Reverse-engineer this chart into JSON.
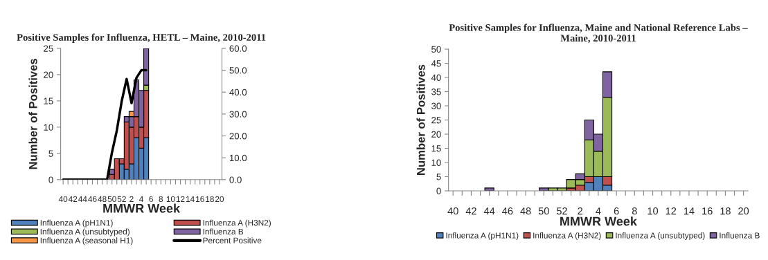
{
  "chart_data": [
    {
      "type": "bar",
      "stacked": true,
      "title": "Positive Samples for Influenza, HETL – Maine, 2010-2011",
      "xlabel": "MMWR Week",
      "ylabel": "Number of Positives",
      "categories": [
        "40",
        null,
        "42",
        null,
        "44",
        null,
        "46",
        null,
        "48",
        null,
        "50",
        null,
        "52",
        null,
        "2",
        null,
        "4",
        null,
        "6",
        null,
        "8",
        null,
        "10",
        null,
        "12",
        null,
        "14",
        null,
        "16",
        null,
        "18",
        null,
        "20"
      ],
      "series": [
        {
          "name": "Influenza A (pH1N1)",
          "color": "#4f81bd",
          "values": [
            0,
            0,
            0,
            0,
            0,
            0,
            0,
            0,
            0,
            0,
            0,
            0,
            3,
            2,
            3,
            8,
            6,
            8,
            0,
            0,
            0,
            0,
            0,
            0,
            0,
            0,
            0,
            0,
            0,
            0,
            0,
            0,
            0
          ]
        },
        {
          "name": "Influenza A (H3N2)",
          "color": "#c0504d",
          "values": [
            0,
            0,
            0,
            0,
            0,
            0,
            0,
            0,
            0,
            0,
            1,
            4,
            1,
            9,
            7,
            4,
            4,
            9,
            0,
            0,
            0,
            0,
            0,
            0,
            0,
            0,
            0,
            0,
            0,
            0,
            0,
            0,
            0
          ]
        },
        {
          "name": "Influenza A (unsubtyped)",
          "color": "#9bbb59",
          "values": [
            0,
            0,
            0,
            0,
            0,
            0,
            0,
            0,
            0,
            0,
            0,
            0,
            0,
            0,
            0,
            0,
            0,
            1,
            0,
            0,
            0,
            0,
            0,
            0,
            0,
            0,
            0,
            0,
            0,
            0,
            0,
            0,
            0
          ]
        },
        {
          "name": "Influenza B",
          "color": "#8064a2",
          "values": [
            0,
            0,
            0,
            0,
            0,
            0,
            0,
            0,
            0,
            0,
            1,
            0,
            0,
            1,
            2,
            7,
            7,
            7,
            0,
            0,
            0,
            0,
            0,
            0,
            0,
            0,
            0,
            0,
            0,
            0,
            0,
            0,
            0
          ]
        },
        {
          "name": "Influenza A (seasonal H1)",
          "color": "#f79646",
          "values": [
            0,
            0,
            0,
            0,
            0,
            0,
            0,
            0,
            0,
            0,
            0,
            0,
            0,
            0,
            1,
            0,
            0,
            0,
            0,
            0,
            0,
            0,
            0,
            0,
            0,
            0,
            0,
            0,
            0,
            0,
            0,
            0,
            0
          ]
        },
        {
          "name": "Percent Positive",
          "type": "line",
          "axis": "y2",
          "color": "#000000",
          "values": [
            0,
            0,
            0,
            0,
            0,
            0,
            0,
            0,
            0,
            0,
            12.5,
            22.6,
            36,
            46,
            35,
            46.5,
            50,
            50,
            null,
            null,
            null,
            null,
            null,
            null,
            null,
            null,
            null,
            null,
            null,
            null,
            null,
            null,
            null
          ]
        }
      ],
      "ylim": [
        0,
        25
      ],
      "yticks": [
        0,
        5,
        10,
        15,
        20,
        25
      ],
      "y2lim": [
        0,
        60
      ],
      "y2ticks": [
        {
          "value": 0,
          "label": "0.0"
        },
        {
          "value": 10,
          "label": "10.0"
        },
        {
          "value": 20,
          "label": "20.0"
        },
        {
          "value": 30,
          "label": "30.0"
        },
        {
          "value": 40,
          "label": "40.0"
        },
        {
          "value": 50,
          "label": "50.0"
        },
        {
          "value": 60,
          "label": "60.0"
        }
      ],
      "legend": "bottom",
      "grid": false
    },
    {
      "type": "bar",
      "stacked": true,
      "title": "Positive Samples for Influenza, Maine and National Reference Labs –\nMaine, 2010-2011",
      "xlabel": "MMWR Week",
      "ylabel": "Number of Positives",
      "categories": [
        "40",
        null,
        "42",
        null,
        "44",
        null,
        "46",
        null,
        "48",
        null,
        "50",
        null,
        "52",
        null,
        "2",
        null,
        "4",
        null,
        "6",
        null,
        "8",
        null,
        "10",
        null,
        "12",
        null,
        "14",
        null,
        "16",
        null,
        "18",
        null,
        "20"
      ],
      "series": [
        {
          "name": "Influenza A (pH1N1)",
          "color": "#4f81bd",
          "values": [
            0,
            0,
            0,
            0,
            0,
            0,
            0,
            0,
            0,
            0,
            0,
            0,
            0,
            0,
            0,
            3,
            5,
            2,
            0,
            0,
            0,
            0,
            0,
            0,
            0,
            0,
            0,
            0,
            0,
            0,
            0,
            0,
            0
          ]
        },
        {
          "name": "Influenza A (H3N2)",
          "color": "#c0504d",
          "values": [
            0,
            0,
            0,
            0,
            0,
            0,
            0,
            0,
            0,
            0,
            0,
            0,
            0,
            1,
            2,
            2,
            0,
            3,
            0,
            0,
            0,
            0,
            0,
            0,
            0,
            0,
            0,
            0,
            0,
            0,
            0,
            0,
            0
          ]
        },
        {
          "name": "Influenza A (unsubtyped)",
          "color": "#9bbb59",
          "values": [
            0,
            0,
            0,
            0,
            0,
            0,
            0,
            0,
            0,
            0,
            0,
            1,
            1,
            3,
            2,
            13,
            9,
            28,
            0,
            0,
            0,
            0,
            0,
            0,
            0,
            0,
            0,
            0,
            0,
            0,
            0,
            0,
            0
          ]
        },
        {
          "name": "Influenza B",
          "color": "#8064a2",
          "values": [
            0,
            0,
            0,
            0,
            1,
            0,
            0,
            0,
            0,
            0,
            1,
            0,
            0,
            0,
            2,
            7,
            6,
            9,
            0,
            0,
            0,
            0,
            0,
            0,
            0,
            0,
            0,
            0,
            0,
            0,
            0,
            0,
            0
          ]
        }
      ],
      "ylim": [
        0,
        50
      ],
      "yticks": [
        0,
        5,
        10,
        15,
        20,
        25,
        30,
        35,
        40,
        45,
        50
      ],
      "legend": "bottom",
      "grid": false
    }
  ]
}
